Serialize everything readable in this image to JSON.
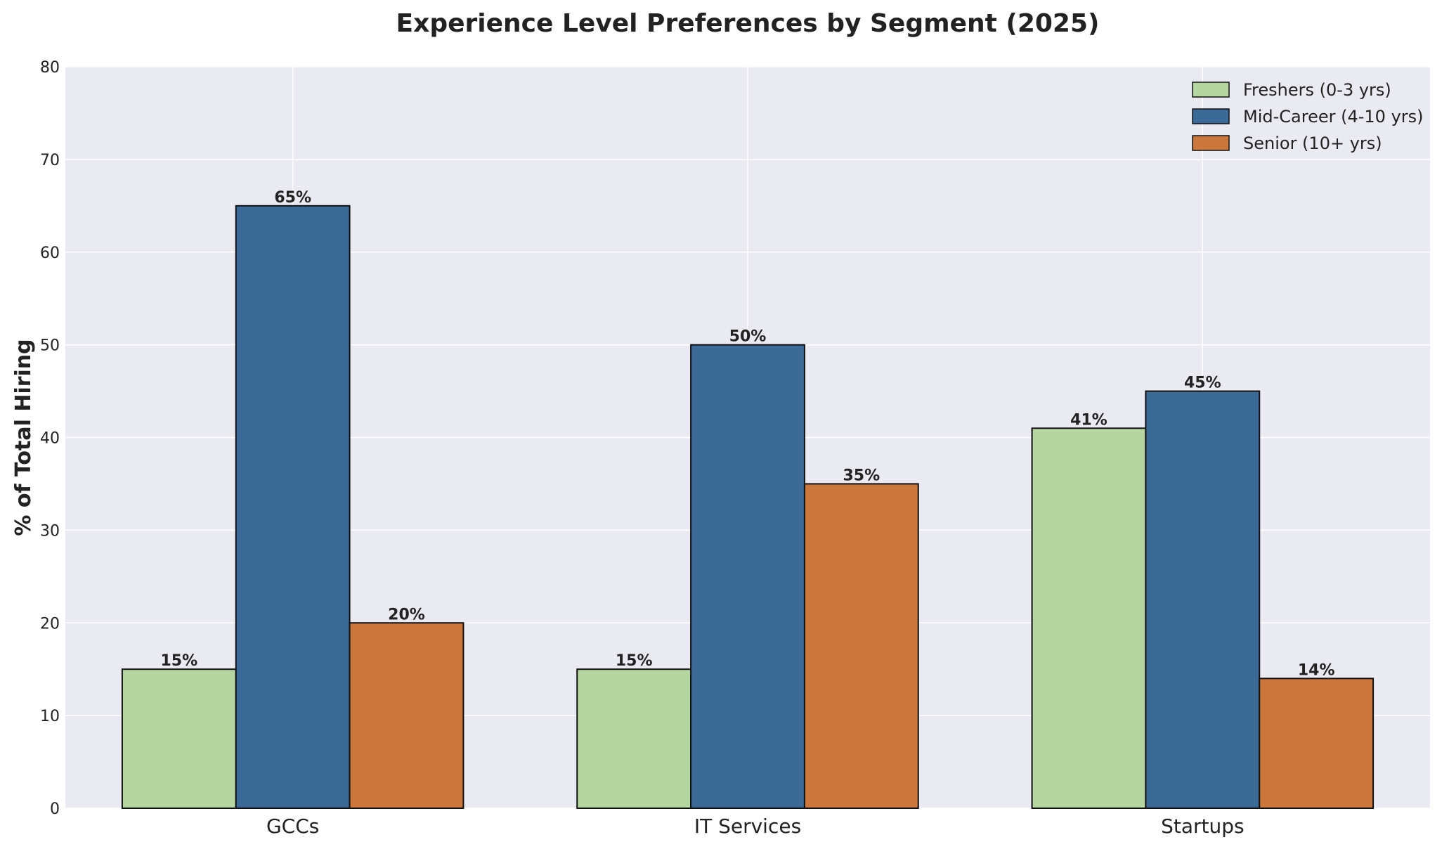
{
  "chart_data": {
    "type": "bar",
    "title": "Experience Level Preferences by Segment (2025)",
    "xlabel": "",
    "ylabel": "% of Total Hiring",
    "ylim": [
      0,
      80
    ],
    "yticks": [
      0,
      10,
      20,
      30,
      40,
      50,
      60,
      70,
      80
    ],
    "categories": [
      "GCCs",
      "IT Services",
      "Startups"
    ],
    "series": [
      {
        "name": "Freshers (0-3 yrs)",
        "values": [
          15,
          15,
          41
        ],
        "labels": [
          "15%",
          "15%",
          "41%"
        ],
        "color": "#b5d6a0"
      },
      {
        "name": "Mid-Career (4-10 yrs)",
        "values": [
          65,
          50,
          45
        ],
        "labels": [
          "65%",
          "50%",
          "45%"
        ],
        "color": "#3b6a96"
      },
      {
        "name": "Senior (10+ yrs)",
        "values": [
          20,
          35,
          14
        ],
        "labels": [
          "20%",
          "35%",
          "14%"
        ],
        "color": "#cc773c"
      }
    ],
    "grid": true,
    "legend_position": "top-right",
    "plot_background": "#eaeaf2"
  }
}
